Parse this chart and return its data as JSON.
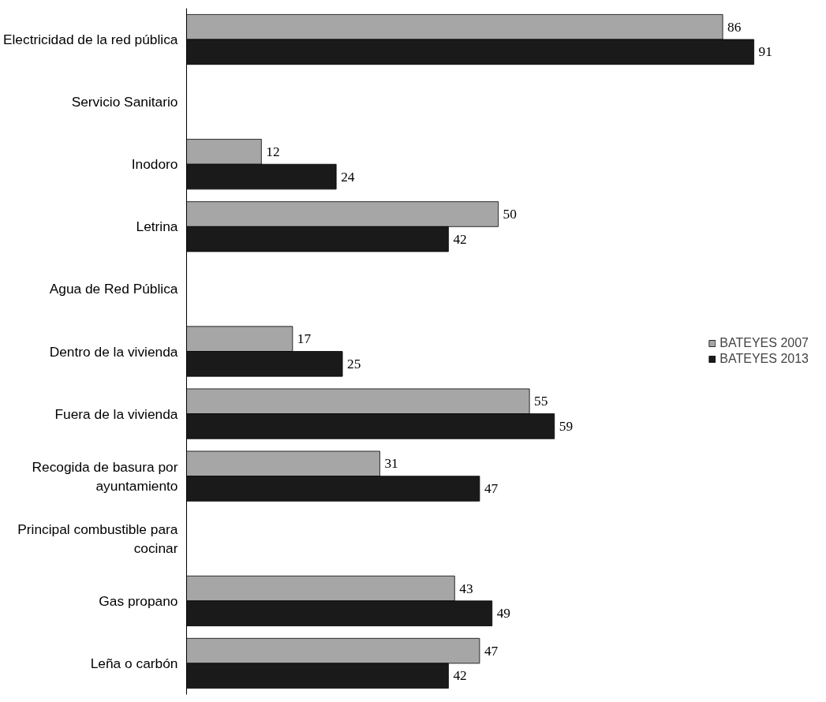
{
  "chart_data": {
    "type": "bar",
    "orientation": "horizontal",
    "data_labels": true,
    "legend": "right",
    "grid": false,
    "categories": [
      "Electricidad de la red pública",
      "Servicio Sanitario",
      "Inodoro",
      "Letrina",
      "Agua de Red Pública",
      "Dentro de la vivienda",
      "Fuera de la vivienda",
      "Recogida de basura por\nayuntamiento",
      "Principal combustible para\ncocinar",
      "Gas propano",
      "Leña o carbón"
    ],
    "series": [
      {
        "name": "BATEYES 2007",
        "color": "#a6a6a6",
        "values": [
          86,
          null,
          12,
          50,
          null,
          17,
          55,
          31,
          null,
          43,
          47
        ]
      },
      {
        "name": "BATEYES 2013",
        "color": "#1a1a1a",
        "values": [
          91,
          null,
          24,
          42,
          null,
          25,
          59,
          47,
          null,
          49,
          42
        ]
      }
    ]
  }
}
